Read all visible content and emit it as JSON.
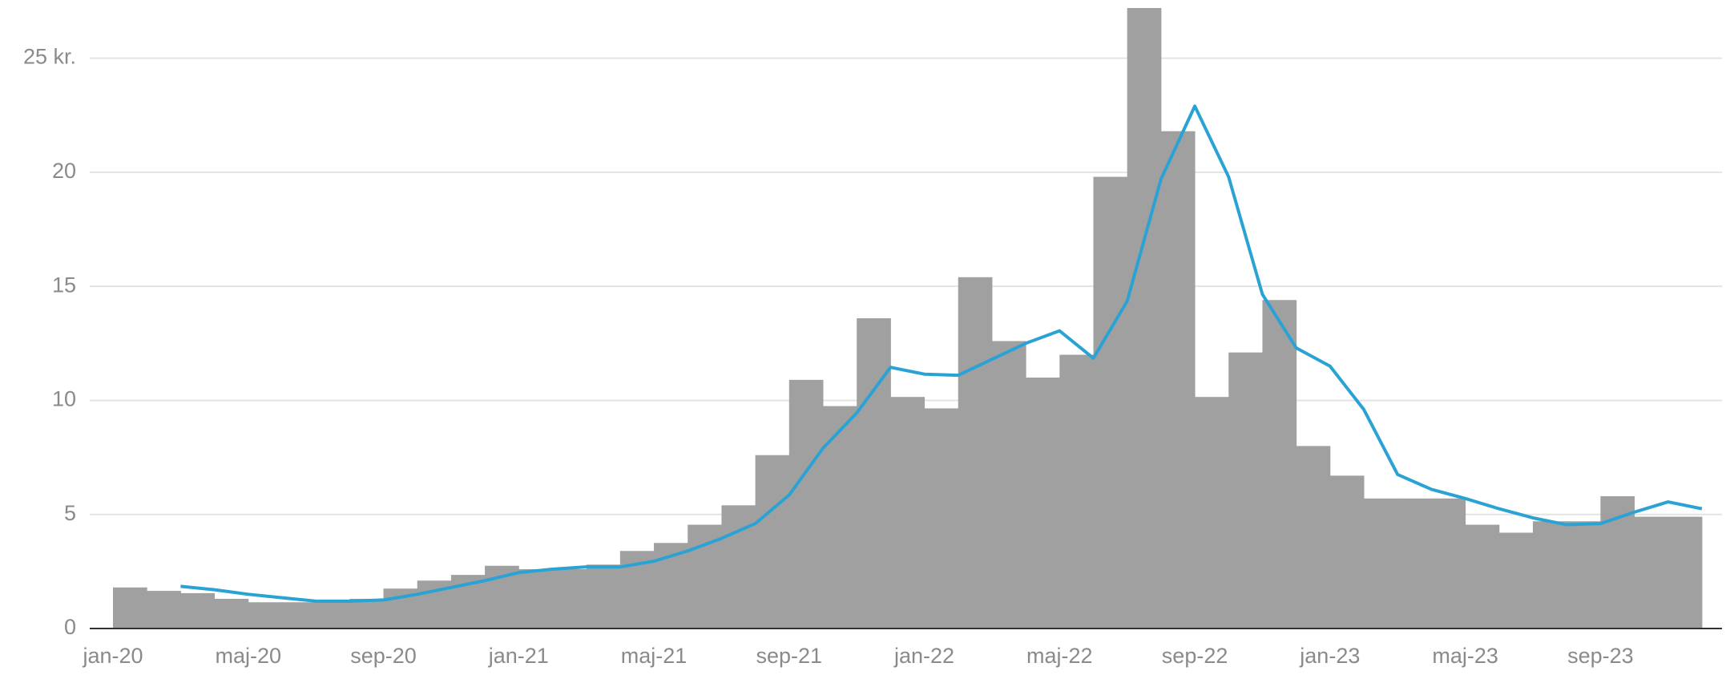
{
  "chart_data": {
    "type": "bar+line",
    "categories": [
      "jan-20",
      null,
      null,
      null,
      "maj-20",
      null,
      null,
      null,
      "sep-20",
      null,
      null,
      null,
      "jan-21",
      null,
      null,
      null,
      "maj-21",
      null,
      null,
      null,
      "sep-21",
      null,
      null,
      null,
      "jan-22",
      null,
      null,
      null,
      "maj-22",
      null,
      null,
      null,
      "sep-22",
      null,
      null,
      null,
      "jan-23",
      null,
      null,
      null,
      "maj-23",
      null,
      null,
      null,
      "sep-23",
      null,
      null
    ],
    "series": [
      {
        "type": "bar",
        "color": "#a0a0a0",
        "values": [
          1.8,
          1.65,
          1.55,
          1.3,
          1.15,
          1.15,
          1.2,
          1.3,
          1.75,
          2.1,
          2.35,
          2.75,
          2.6,
          2.6,
          2.8,
          3.4,
          3.75,
          4.55,
          5.4,
          7.6,
          10.9,
          9.75,
          13.6,
          10.15,
          9.65,
          15.4,
          12.6,
          11.0,
          12.0,
          19.8,
          27.2,
          21.8,
          10.15,
          12.1,
          14.4,
          8.0,
          6.7,
          5.7,
          5.7,
          5.7,
          4.55,
          4.2,
          4.7,
          4.7,
          5.8,
          4.9,
          4.9
        ]
      },
      {
        "type": "line",
        "color": "#2aa3d4",
        "values": [
          null,
          1.85,
          1.7,
          1.5,
          1.35,
          1.2,
          1.2,
          1.25,
          1.5,
          1.8,
          2.1,
          2.45,
          2.6,
          2.7,
          2.7,
          2.95,
          3.4,
          3.95,
          4.6,
          5.85,
          7.9,
          9.45,
          11.45,
          11.15,
          11.1,
          11.8,
          12.5,
          13.05,
          11.85,
          14.35,
          19.7,
          22.9,
          19.8,
          14.65,
          12.3,
          11.5,
          9.6,
          6.75,
          6.1,
          5.7,
          5.25,
          4.85,
          4.55,
          4.6,
          5.1,
          5.55,
          5.25
        ]
      }
    ],
    "ylim": [
      0,
      27.2
    ],
    "yticks": [
      0,
      5,
      10,
      15,
      20,
      {
        "value": 25,
        "label": "25 kr."
      }
    ],
    "grid": true
  }
}
